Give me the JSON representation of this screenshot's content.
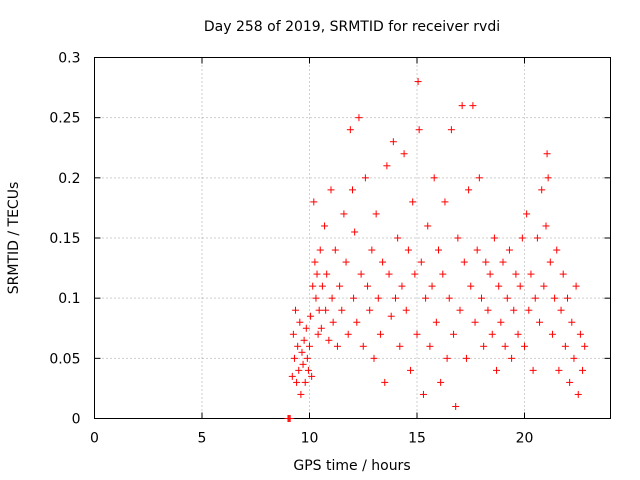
{
  "chart_data": {
    "type": "scatter",
    "title": "Day 258 of 2019, SRMTID for receiver rvdi",
    "xlabel": "GPS time / hours",
    "ylabel": "SRMTID / TECUs",
    "xlim": [
      0,
      24
    ],
    "ylim": [
      0,
      0.3
    ],
    "xticks": [
      0,
      5,
      10,
      15,
      20
    ],
    "yticks": [
      0,
      0.05,
      0.1,
      0.15,
      0.2,
      0.25,
      0.3
    ],
    "xtick_labels": [
      "0",
      "5",
      "10",
      "15",
      "20"
    ],
    "ytick_labels": [
      "0",
      "0.05",
      "0.1",
      "0.15",
      "0.2",
      "0.25",
      "0.3"
    ],
    "grid": true,
    "marker": "+",
    "color": "#ff0000",
    "series": [
      {
        "name": "SRMTID",
        "points": [
          [
            9.0,
            0.0
          ],
          [
            9.05,
            0.0
          ],
          [
            9.1,
            0.0
          ],
          [
            9.2,
            0.035
          ],
          [
            9.25,
            0.07
          ],
          [
            9.3,
            0.05
          ],
          [
            9.35,
            0.09
          ],
          [
            9.4,
            0.03
          ],
          [
            9.45,
            0.06
          ],
          [
            9.5,
            0.04
          ],
          [
            9.55,
            0.08
          ],
          [
            9.6,
            0.02
          ],
          [
            9.65,
            0.055
          ],
          [
            9.7,
            0.045
          ],
          [
            9.75,
            0.065
          ],
          [
            9.8,
            0.03
          ],
          [
            9.85,
            0.075
          ],
          [
            9.9,
            0.05
          ],
          [
            9.95,
            0.04
          ],
          [
            10.0,
            0.06
          ],
          [
            10.05,
            0.085
          ],
          [
            10.1,
            0.035
          ],
          [
            10.15,
            0.11
          ],
          [
            10.2,
            0.18
          ],
          [
            10.25,
            0.13
          ],
          [
            10.3,
            0.1
          ],
          [
            10.35,
            0.12
          ],
          [
            10.4,
            0.07
          ],
          [
            10.45,
            0.09
          ],
          [
            10.5,
            0.14
          ],
          [
            10.55,
            0.075
          ],
          [
            10.6,
            0.11
          ],
          [
            10.7,
            0.16
          ],
          [
            10.75,
            0.09
          ],
          [
            10.8,
            0.12
          ],
          [
            10.9,
            0.065
          ],
          [
            11.0,
            0.19
          ],
          [
            11.05,
            0.1
          ],
          [
            11.1,
            0.08
          ],
          [
            11.2,
            0.14
          ],
          [
            11.3,
            0.06
          ],
          [
            11.4,
            0.11
          ],
          [
            11.5,
            0.09
          ],
          [
            11.6,
            0.17
          ],
          [
            11.7,
            0.13
          ],
          [
            11.8,
            0.07
          ],
          [
            11.9,
            0.24
          ],
          [
            12.0,
            0.19
          ],
          [
            12.05,
            0.1
          ],
          [
            12.1,
            0.155
          ],
          [
            12.2,
            0.08
          ],
          [
            12.3,
            0.25
          ],
          [
            12.4,
            0.12
          ],
          [
            12.5,
            0.06
          ],
          [
            12.6,
            0.2
          ],
          [
            12.7,
            0.11
          ],
          [
            12.8,
            0.09
          ],
          [
            12.9,
            0.14
          ],
          [
            13.0,
            0.05
          ],
          [
            13.1,
            0.17
          ],
          [
            13.2,
            0.1
          ],
          [
            13.3,
            0.07
          ],
          [
            13.4,
            0.13
          ],
          [
            13.5,
            0.03
          ],
          [
            13.6,
            0.21
          ],
          [
            13.7,
            0.12
          ],
          [
            13.8,
            0.085
          ],
          [
            13.9,
            0.23
          ],
          [
            14.0,
            0.1
          ],
          [
            14.1,
            0.15
          ],
          [
            14.2,
            0.06
          ],
          [
            14.3,
            0.11
          ],
          [
            14.4,
            0.22
          ],
          [
            14.5,
            0.09
          ],
          [
            14.6,
            0.14
          ],
          [
            14.7,
            0.04
          ],
          [
            14.8,
            0.18
          ],
          [
            14.9,
            0.12
          ],
          [
            15.0,
            0.07
          ],
          [
            15.05,
            0.28
          ],
          [
            15.1,
            0.24
          ],
          [
            15.2,
            0.13
          ],
          [
            15.3,
            0.02
          ],
          [
            15.4,
            0.1
          ],
          [
            15.5,
            0.16
          ],
          [
            15.6,
            0.06
          ],
          [
            15.7,
            0.11
          ],
          [
            15.8,
            0.2
          ],
          [
            15.9,
            0.08
          ],
          [
            16.0,
            0.14
          ],
          [
            16.1,
            0.03
          ],
          [
            16.2,
            0.12
          ],
          [
            16.3,
            0.18
          ],
          [
            16.4,
            0.05
          ],
          [
            16.5,
            0.1
          ],
          [
            16.6,
            0.24
          ],
          [
            16.7,
            0.07
          ],
          [
            16.8,
            0.01
          ],
          [
            16.9,
            0.15
          ],
          [
            17.0,
            0.09
          ],
          [
            17.1,
            0.26
          ],
          [
            17.2,
            0.13
          ],
          [
            17.3,
            0.05
          ],
          [
            17.4,
            0.19
          ],
          [
            17.5,
            0.11
          ],
          [
            17.6,
            0.26
          ],
          [
            17.7,
            0.08
          ],
          [
            17.8,
            0.14
          ],
          [
            17.9,
            0.2
          ],
          [
            18.0,
            0.1
          ],
          [
            18.1,
            0.06
          ],
          [
            18.2,
            0.13
          ],
          [
            18.3,
            0.09
          ],
          [
            18.4,
            0.12
          ],
          [
            18.5,
            0.07
          ],
          [
            18.6,
            0.15
          ],
          [
            18.7,
            0.04
          ],
          [
            18.8,
            0.11
          ],
          [
            18.9,
            0.08
          ],
          [
            19.0,
            0.13
          ],
          [
            19.1,
            0.06
          ],
          [
            19.2,
            0.1
          ],
          [
            19.3,
            0.14
          ],
          [
            19.4,
            0.05
          ],
          [
            19.5,
            0.09
          ],
          [
            19.6,
            0.12
          ],
          [
            19.7,
            0.07
          ],
          [
            19.8,
            0.11
          ],
          [
            19.9,
            0.15
          ],
          [
            20.0,
            0.06
          ],
          [
            20.1,
            0.17
          ],
          [
            20.2,
            0.09
          ],
          [
            20.3,
            0.12
          ],
          [
            20.4,
            0.04
          ],
          [
            20.5,
            0.1
          ],
          [
            20.6,
            0.15
          ],
          [
            20.7,
            0.08
          ],
          [
            20.8,
            0.19
          ],
          [
            20.9,
            0.11
          ],
          [
            21.0,
            0.16
          ],
          [
            21.05,
            0.22
          ],
          [
            21.1,
            0.2
          ],
          [
            21.2,
            0.13
          ],
          [
            21.3,
            0.07
          ],
          [
            21.4,
            0.1
          ],
          [
            21.5,
            0.14
          ],
          [
            21.6,
            0.04
          ],
          [
            21.7,
            0.09
          ],
          [
            21.8,
            0.12
          ],
          [
            21.9,
            0.06
          ],
          [
            22.0,
            0.1
          ],
          [
            22.1,
            0.03
          ],
          [
            22.2,
            0.08
          ],
          [
            22.3,
            0.05
          ],
          [
            22.4,
            0.11
          ],
          [
            22.5,
            0.02
          ],
          [
            22.6,
            0.07
          ],
          [
            22.7,
            0.04
          ],
          [
            22.8,
            0.06
          ]
        ]
      }
    ]
  }
}
